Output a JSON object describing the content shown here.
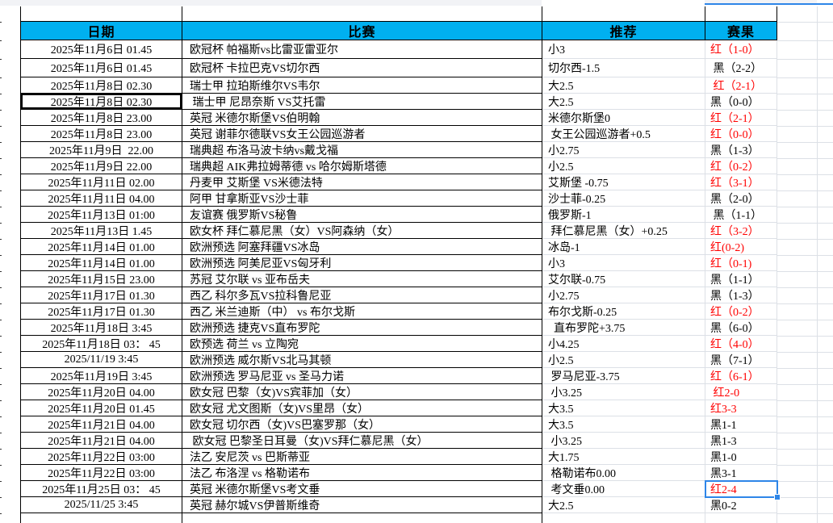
{
  "app": {
    "kind": "spreadsheet-betting-record"
  },
  "colors": {
    "header_bg": "#00B0F0",
    "win_text": "#FF0000",
    "loss_text": "#000000",
    "selection_blue": "#2E86E8",
    "table_border": "#000000",
    "gridline": "#DCE0E6",
    "top_sliver_bg": "#F2F3F6"
  },
  "table": {
    "headers": {
      "date": "日期",
      "match": "比赛",
      "recommendation": "推荐",
      "result": "赛果"
    },
    "rows": [
      {
        "date": "2025年11月6日 01.45",
        "match": "欧冠杯 帕福斯vs比雷亚雷亚尔",
        "recommendation": "小3",
        "result": "红（1-0）",
        "result_type": "win"
      },
      {
        "date": "2025年11月6日 01.45",
        "match": "欧冠杯 卡拉巴克VS切尔西",
        "recommendation": "切尔西-1.5",
        "result": " 黑（2-2）",
        "result_type": "loss"
      },
      {
        "date": "2025年11月8日 02.30",
        "match": "瑞士甲 拉珀斯维尔VS韦尔",
        "recommendation": "大2.5",
        "result": " 红（2-1）",
        "result_type": "win"
      },
      {
        "date": "2025年11月8日 02.30",
        "match": " 瑞士甲 尼昂奈斯 VS艾托雷",
        "recommendation": "大2.5",
        "result": "黑（0-0）",
        "result_type": "loss",
        "date_boxed": true
      },
      {
        "date": "2025年11月8日 23.00",
        "match": "英冠 米德尔斯堡VS伯明翰",
        "recommendation": "米德尔斯堡0",
        "result": "红（2-1）",
        "result_type": "win"
      },
      {
        "date": "2025年11月8日 23.00",
        "match": "英冠 谢菲尔德联VS女王公园巡游者",
        "recommendation": " 女王公园巡游者+0.5",
        "result": "红（0-0）",
        "result_type": "win"
      },
      {
        "date": "2025年11月9日  22.00",
        "match": "瑞典超 布洛马波卡纳vs戴戈福",
        "recommendation": "小2.75",
        "result": "黑（1-3）",
        "result_type": "loss"
      },
      {
        "date": "2025年11月9日 22.00",
        "match": "瑞典超 AIK弗拉姆蒂德 vs 哈尔姆斯塔德",
        "recommendation": "小2.5",
        "result": "红（0-2）",
        "result_type": "win"
      },
      {
        "date": "2025年11月11日 02.00",
        "match": "丹麦甲 艾斯堡 VS米德法特",
        "recommendation": "艾斯堡 -0.75",
        "result": "红（3-1）",
        "result_type": "win"
      },
      {
        "date": "2025年11月11日 04.00",
        "match": "阿甲 甘拿斯亚VS沙士菲",
        "recommendation": "沙士菲-0.25",
        "result": "黑（2-0）",
        "result_type": "loss"
      },
      {
        "date": "2025年11月13日 01:00",
        "match": "友谊赛 俄罗斯VS秘鲁",
        "recommendation": "俄罗斯-1",
        "result": " 黑（1-1）",
        "result_type": "loss"
      },
      {
        "date": "2025年11月13日 1.45",
        "match": "欧女杯 拜仁慕尼黑（女）VS阿森纳（女）",
        "recommendation": " 拜仁慕尼黑（女）+0.25",
        "result": "红（3-2）",
        "result_type": "win"
      },
      {
        "date": "2025年11月14日 01.00",
        "match": "欧洲预选 阿塞拜疆VS冰岛",
        "recommendation": "冰岛-1",
        "result": "红(0-2)",
        "result_type": "win"
      },
      {
        "date": "2025年11月14日 01.00",
        "match": "欧洲预选 阿美尼亚VS匈牙利",
        "recommendation": "小3",
        "result": "红（0-1)",
        "result_type": "win"
      },
      {
        "date": "2025年11月15日 23.00",
        "match": "苏冠 艾尔联 vs 亚布岳夫",
        "recommendation": "艾尔联-0.75",
        "result": "黑（1-1）",
        "result_type": "loss"
      },
      {
        "date": "2025年11月17日 01.30",
        "match": "西乙 科尔多瓦VS拉科鲁尼亚",
        "recommendation": "小2.75",
        "result": "黑（1-3）",
        "result_type": "loss"
      },
      {
        "date": "2025年11月17日 01.30",
        "match": "西乙 米兰迪斯（中） vs 布尔戈斯",
        "recommendation": "布尔戈斯-0.25",
        "result": "红（0-2）",
        "result_type": "win"
      },
      {
        "date": "2025年11月18日 3:45",
        "match": "欧洲预选 捷克VS直布罗陀",
        "recommendation": "  直布罗陀+3.75",
        "result": "黑（6-0）",
        "result_type": "loss"
      },
      {
        "date": "2025年11月18日 03： 45",
        "match": "欧预选 荷兰 vs 立陶宛",
        "recommendation": "小4.25",
        "result": "红（4-0）",
        "result_type": "win"
      },
      {
        "date": "2025/11/19 3:45",
        "match": "欧洲预选 威尔斯VS北马其顿",
        "recommendation": "小2.5",
        "result": "黑（7-1）",
        "result_type": "loss"
      },
      {
        "date": "2025年11月19日 3:45",
        "match": "欧洲预选 罗马尼亚 vs 圣马力诺",
        "recommendation": " 罗马尼亚-3.75",
        "result": "红（6-1）",
        "result_type": "win"
      },
      {
        "date": "2025年11月20日 04.00",
        "match": "欧女冠 巴黎（女)VS宾菲加（女）",
        "recommendation": " 小3.25",
        "result": " 红2-0",
        "result_type": "win"
      },
      {
        "date": "2025年11月20日 01.45",
        "match": "欧女冠 尤文图斯（女)VS里昂（女）",
        "recommendation": "大3.5",
        "result": "红3-3",
        "result_type": "win"
      },
      {
        "date": "2025年11月21日 04.00",
        "match": "欧女冠 切尔西（女)VS巴塞罗那（女）",
        "recommendation": "大3.5",
        "result": "黑1-1",
        "result_type": "loss"
      },
      {
        "date": "2025年11月21日 04.00",
        "match": " 欧女冠 巴黎圣日耳曼（女)VS拜仁慕尼黑（女）",
        "recommendation": " 小3.25",
        "result": "黑1-3",
        "result_type": "loss"
      },
      {
        "date": "2025年11月22日 03:00",
        "match": "法乙 安尼茨 vs 巴斯蒂亚",
        "recommendation": "大1.75",
        "result": "黑1-0",
        "result_type": "loss"
      },
      {
        "date": "2025年11月22日 03:00",
        "match": "法乙 布洛涅 vs 格勒诺布",
        "recommendation": " 格勒诺布0.00",
        "result": "黑3-1",
        "result_type": "loss"
      },
      {
        "date": "2025年11月25日 03： 45",
        "match": "英冠 米德尔斯堡VS考文垂",
        "recommendation": " 考文垂0.00",
        "result": "红2-4",
        "result_type": "win",
        "result_selected": true
      },
      {
        "date": "2025/11/25 3:45",
        "match": "英冠 赫尔城VS伊普斯维奇",
        "recommendation": "大2.5",
        "result": "黑0-2",
        "result_type": "loss"
      }
    ]
  }
}
